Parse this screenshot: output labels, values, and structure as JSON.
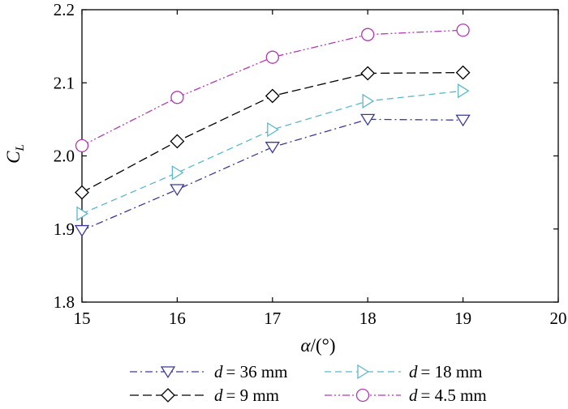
{
  "chart_data": {
    "type": "line",
    "title": "",
    "xlabel_var": "α",
    "xlabel_unit": "/(°)",
    "ylabel_var": "C",
    "ylabel_sub": "L",
    "xlim": [
      15,
      20
    ],
    "ylim": [
      1.8,
      2.2
    ],
    "x_ticks": [
      15,
      16,
      17,
      18,
      19,
      20
    ],
    "y_ticks": [
      1.8,
      1.9,
      2.0,
      2.1,
      2.2
    ],
    "x_tick_labels": [
      "15",
      "16",
      "17",
      "18",
      "19",
      "20"
    ],
    "y_tick_labels": [
      "1.8",
      "1.9",
      "2.0",
      "2.1",
      "2.2"
    ],
    "grid": false,
    "legend_position": "bottom",
    "x": [
      15,
      16,
      17,
      18,
      19
    ],
    "series": [
      {
        "name": "d = 36 mm",
        "var": "d",
        "value_text": "= 36 mm",
        "color": "#3a3a96",
        "marker": "triangle-down",
        "dash": "dashdot",
        "values": [
          1.898,
          1.954,
          2.012,
          2.05,
          2.049
        ]
      },
      {
        "name": "d = 18 mm",
        "var": "d",
        "value_text": "= 18 mm",
        "color": "#5bb8c9",
        "marker": "triangle-right",
        "dash": "dashed",
        "values": [
          1.921,
          1.977,
          2.036,
          2.075,
          2.089
        ]
      },
      {
        "name": "d = 9 mm",
        "var": "d",
        "value_text": "= 9 mm",
        "color": "#000000",
        "marker": "diamond",
        "dash": "longdash",
        "values": [
          1.95,
          2.02,
          2.082,
          2.113,
          2.114
        ]
      },
      {
        "name": "d = 4.5 mm",
        "var": "d",
        "value_text": "= 4.5 mm",
        "color": "#b03ab0",
        "marker": "circle",
        "dash": "dashdotdot",
        "values": [
          2.014,
          2.08,
          2.135,
          2.166,
          2.172
        ]
      }
    ]
  }
}
